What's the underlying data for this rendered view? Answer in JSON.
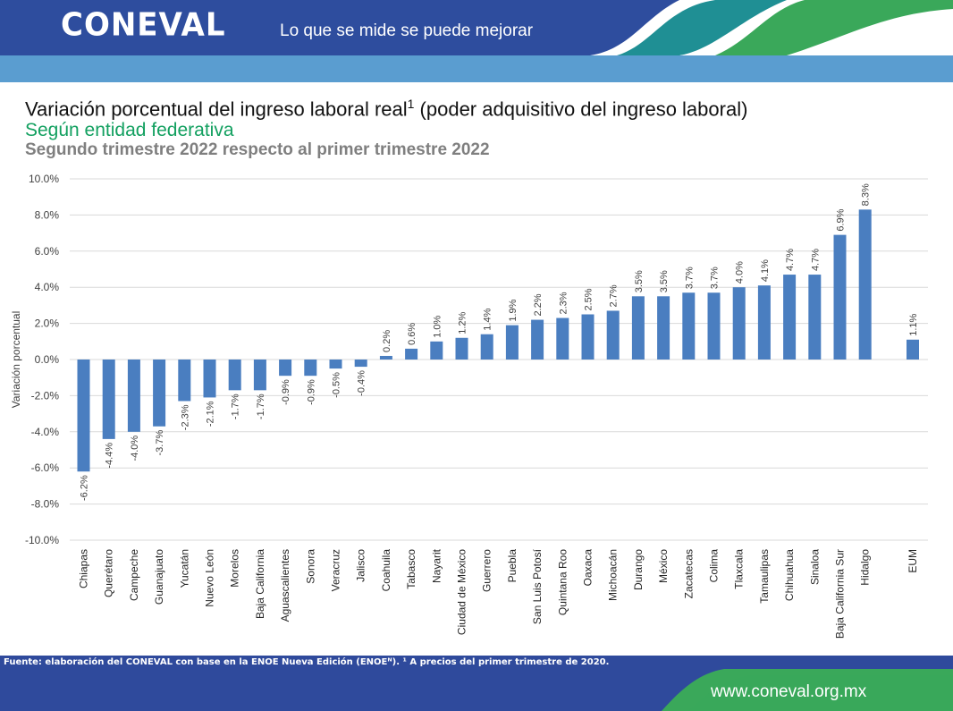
{
  "header": {
    "logo": "CONEVAL",
    "tagline": "Lo que se mide se puede mejorar"
  },
  "title": {
    "main": "Variación porcentual del ingreso laboral real",
    "superscript": "1",
    "suffix": " (poder adquisitivo del ingreso laboral)",
    "subtitle": "Según entidad federativa",
    "subtitle2": "Segundo trimestre 2022 respecto al primer trimestre 2022"
  },
  "footer": {
    "source": "Fuente: elaboración del CONEVAL con base en la ENOE Nueva Edición (ENOEᴺ). ¹ A precios del primer trimestre de 2020.",
    "website": "www.coneval.org.mx"
  },
  "colors": {
    "bar": "#4a7ec0",
    "header_blue": "#2e4d9e",
    "header_light": "#5a9dd0",
    "teal": "#1f8f94",
    "green": "#3aa85a",
    "footer_blue": "#2f4a9c"
  },
  "chart_data": {
    "type": "bar",
    "ylabel": "Variación porcentual",
    "ylim": [
      -10,
      10
    ],
    "yticks": [
      10,
      8,
      6,
      4,
      2,
      0,
      -2,
      -4,
      -6,
      -8,
      -10
    ],
    "ytick_labels": [
      "10.0%",
      "8.0%",
      "6.0%",
      "4.0%",
      "2.0%",
      "0.0%",
      "-2.0%",
      "-4.0%",
      "-6.0%",
      "-8.0%",
      "-10.0%"
    ],
    "grid": true,
    "categories": [
      "Chiapas",
      "Querétaro",
      "Campeche",
      "Guanajuato",
      "Yucatán",
      "Nuevo León",
      "Morelos",
      "Baja California",
      "Aguascalientes",
      "Sonora",
      "Veracruz",
      "Jalisco",
      "Coahuila",
      "Tabasco",
      "Nayarit",
      "Ciudad de México",
      "Guerrero",
      "Puebla",
      "San Luis Potosí",
      "Quintana Roo",
      "Oaxaca",
      "Michoacán",
      "Durango",
      "México",
      "Zacatecas",
      "Colima",
      "Tlaxcala",
      "Tamaulipas",
      "Chihuahua",
      "Sinaloa",
      "Baja California Sur",
      "Hidalgo",
      "EUM"
    ],
    "values": [
      -6.2,
      -4.4,
      -4.0,
      -3.7,
      -2.3,
      -2.1,
      -1.7,
      -1.7,
      -0.9,
      -0.9,
      -0.5,
      -0.4,
      0.2,
      0.6,
      1.0,
      1.2,
      1.4,
      1.9,
      2.2,
      2.3,
      2.5,
      2.7,
      3.5,
      3.5,
      3.7,
      3.7,
      4.0,
      4.1,
      4.7,
      4.7,
      6.9,
      8.3,
      1.1
    ],
    "value_labels": [
      "-6.2%",
      "-4.4%",
      "-4.0%",
      "-3.7%",
      "-2.3%",
      "-2.1%",
      "-1.7%",
      "-1.7%",
      "-0.9%",
      "-0.9%",
      "-0.5%",
      "-0.4%",
      "0.2%",
      "0.6%",
      "1.0%",
      "1.2%",
      "1.4%",
      "1.9%",
      "2.2%",
      "2.3%",
      "2.5%",
      "2.7%",
      "3.5%",
      "3.5%",
      "3.7%",
      "3.7%",
      "4.0%",
      "4.1%",
      "4.7%",
      "4.7%",
      "6.9%",
      "8.3%",
      "1.1%"
    ]
  }
}
